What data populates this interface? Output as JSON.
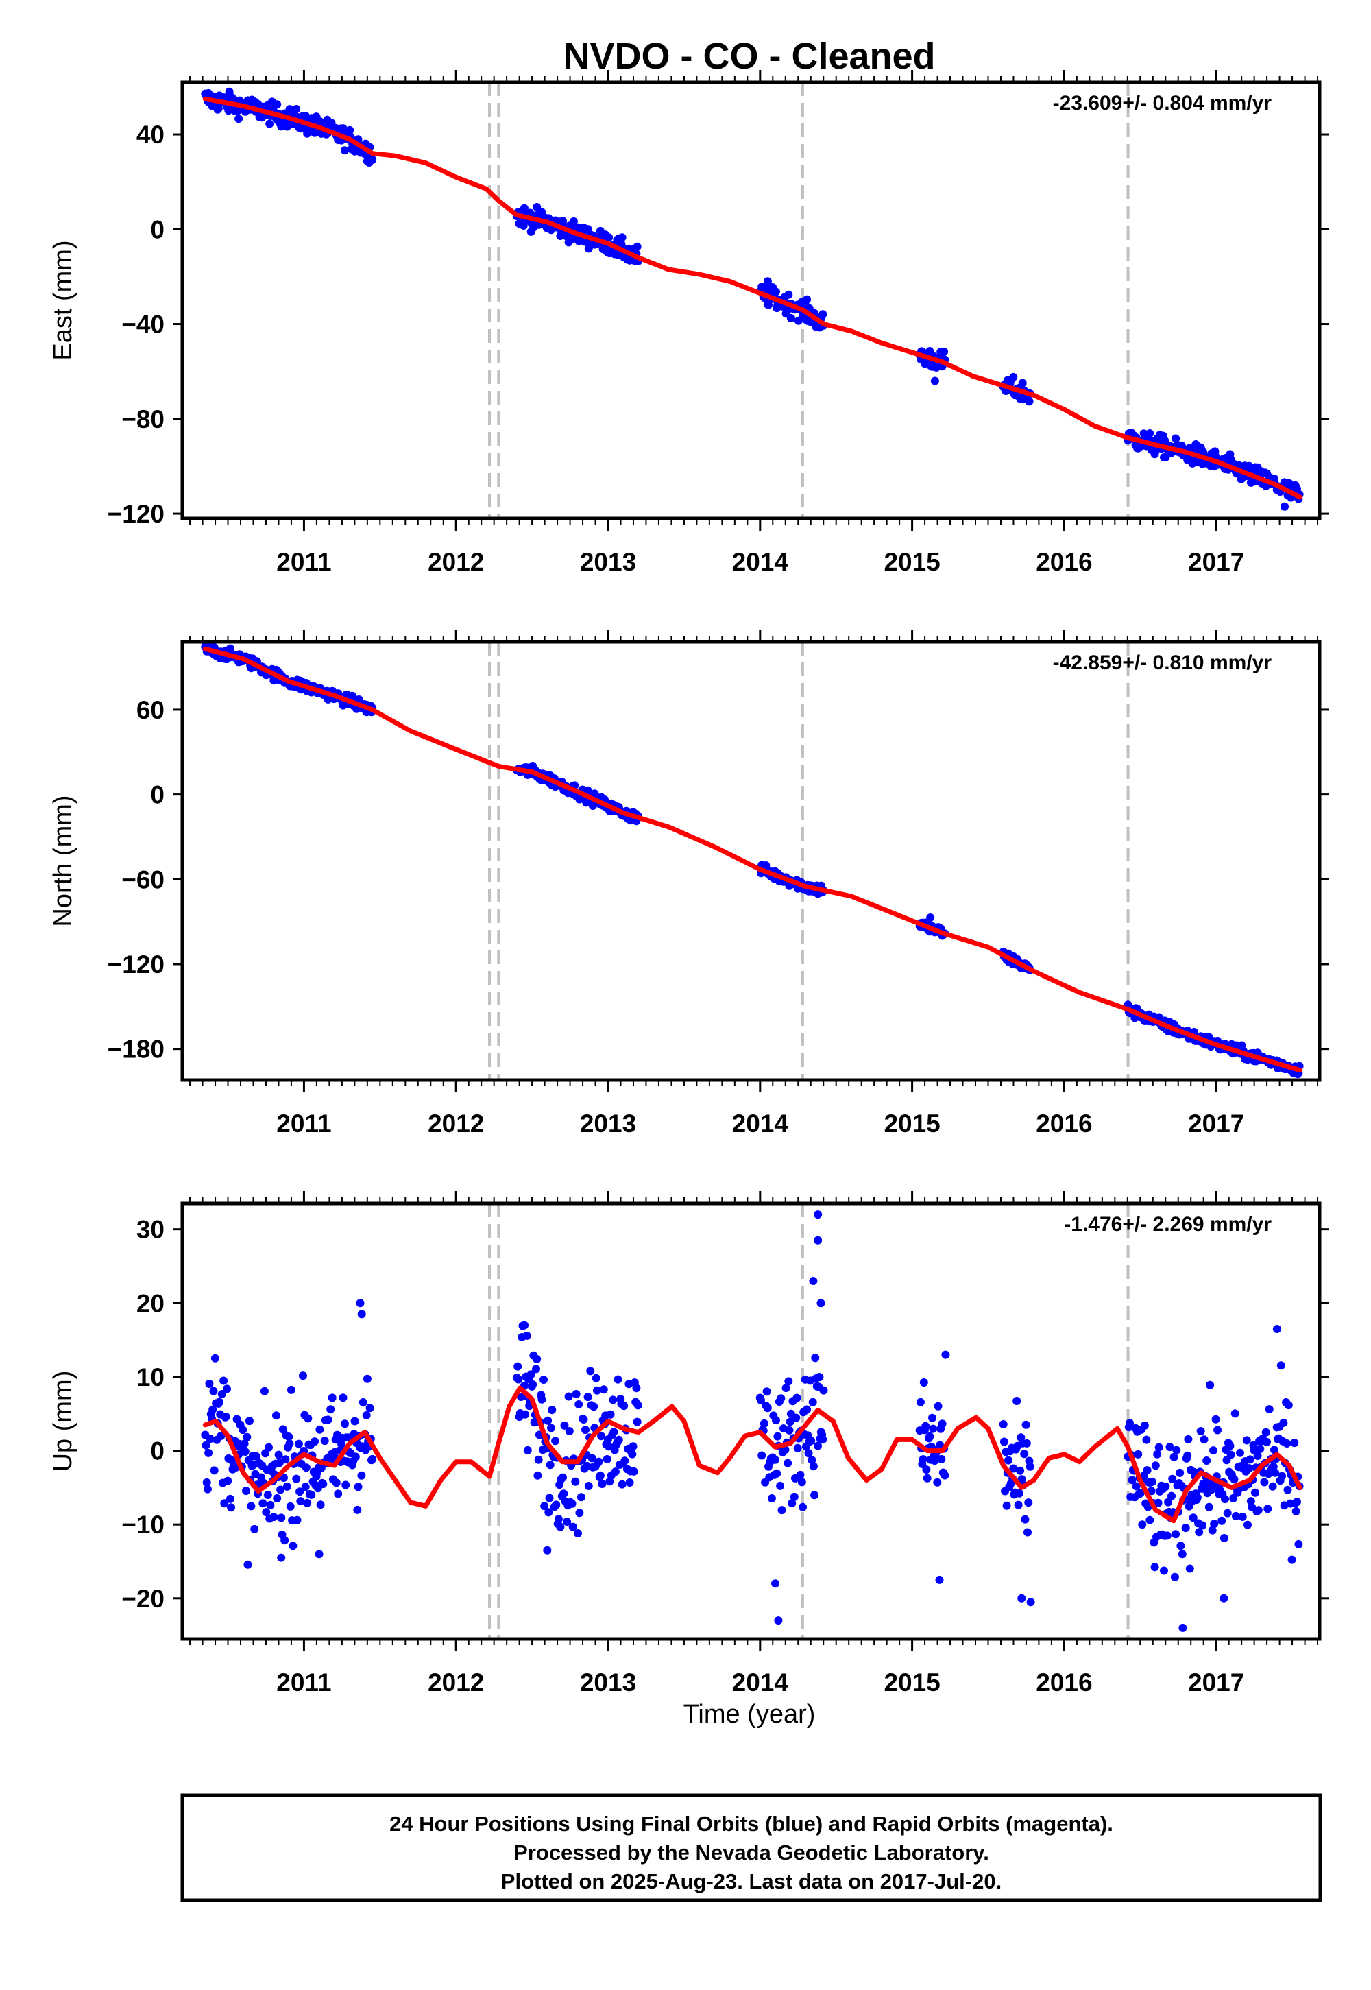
{
  "title": "NVDO  - CO - Cleaned",
  "xlabel": "Time (year)",
  "footer": {
    "line1": "24 Hour Positions Using Final Orbits (blue) and Rapid Orbits (magenta).",
    "line2": "Processed by the Nevada Geodetic Laboratory.",
    "line3": "Plotted on 2025-Aug-23. Last data on 2017-Jul-20."
  },
  "colors": {
    "data": "#0000ff",
    "model": "#ff0000",
    "steps": "#c0c0c0",
    "frame": "#000000"
  },
  "chart_data": [
    {
      "type": "scatter",
      "ylabel": "East (mm)",
      "rate_text": "-23.609+/- 0.804 mm/yr",
      "xlim": [
        2010.2,
        2017.68
      ],
      "ylim": [
        -122,
        62
      ],
      "yticks": [
        40,
        0,
        -40,
        -80,
        -120
      ],
      "ytick_labels": [
        "40",
        "0",
        "−40",
        "−80",
        "−120"
      ],
      "xticks": [
        2011,
        2012,
        2013,
        2014,
        2015,
        2016,
        2017
      ],
      "xtick_labels": [
        "2011",
        "2012",
        "2013",
        "2014",
        "2015",
        "2016",
        "2017"
      ],
      "step_lines": [
        2012.22,
        2012.28,
        2014.28,
        2016.42
      ],
      "data_segments": [
        [
          2010.35,
          2011.45
        ],
        [
          2012.4,
          2013.2
        ],
        [
          2014.0,
          2014.42
        ],
        [
          2015.05,
          2015.22
        ],
        [
          2015.6,
          2015.78
        ],
        [
          2016.42,
          2017.55
        ]
      ],
      "series": [
        {
          "name": "Final Orbits",
          "kind": "points",
          "scatter": 2.2,
          "outliers": [
            [
              2014.05,
              -22
            ],
            [
              2015.15,
              -64
            ],
            [
              2017.45,
              -117
            ]
          ]
        },
        {
          "kind": "line",
          "x": [
            2010.35,
            2010.6,
            2010.9,
            2011.1,
            2011.3,
            2011.45,
            2011.6,
            2011.8,
            2012.0,
            2012.2,
            2012.28,
            2012.4,
            2012.6,
            2012.8,
            2013.0,
            2013.2,
            2013.4,
            2013.6,
            2013.8,
            2014.0,
            2014.28,
            2014.42,
            2014.6,
            2014.8,
            2015.0,
            2015.2,
            2015.4,
            2015.6,
            2015.8,
            2016.0,
            2016.2,
            2016.42,
            2016.6,
            2016.8,
            2017.0,
            2017.2,
            2017.4,
            2017.55
          ],
          "y": [
            55,
            52,
            47,
            43,
            38,
            32,
            31,
            28,
            22,
            17,
            12,
            6,
            3,
            -2,
            -6,
            -12,
            -17,
            -19,
            -22,
            -27,
            -34,
            -40,
            -43,
            -48,
            -52,
            -56,
            -62,
            -66,
            -70,
            -76,
            -83,
            -88,
            -91,
            -94,
            -98,
            -103,
            -108,
            -113
          ]
        }
      ]
    },
    {
      "type": "scatter",
      "ylabel": "North (mm)",
      "rate_text": "-42.859+/- 0.810 mm/yr",
      "xlim": [
        2010.2,
        2017.68
      ],
      "ylim": [
        -202,
        108
      ],
      "yticks": [
        60,
        0,
        -60,
        -120,
        -180
      ],
      "ytick_labels": [
        "60",
        "0",
        "−60",
        "−120",
        "−180"
      ],
      "xticks": [
        2011,
        2012,
        2013,
        2014,
        2015,
        2016,
        2017
      ],
      "xtick_labels": [
        "2011",
        "2012",
        "2013",
        "2014",
        "2015",
        "2016",
        "2017"
      ],
      "step_lines": [
        2012.22,
        2012.28,
        2014.28,
        2016.42
      ],
      "data_segments": [
        [
          2010.35,
          2011.45
        ],
        [
          2012.4,
          2013.2
        ],
        [
          2014.0,
          2014.42
        ],
        [
          2015.05,
          2015.22
        ],
        [
          2015.6,
          2015.78
        ],
        [
          2016.42,
          2017.55
        ]
      ],
      "series": [
        {
          "name": "Final Orbits",
          "kind": "points",
          "scatter": 2.0,
          "outliers": [
            [
              2015.12,
              -87
            ]
          ]
        },
        {
          "kind": "line",
          "x": [
            2010.35,
            2010.6,
            2010.9,
            2011.2,
            2011.45,
            2011.7,
            2012.0,
            2012.28,
            2012.5,
            2012.8,
            2013.1,
            2013.4,
            2013.7,
            2014.0,
            2014.3,
            2014.6,
            2014.9,
            2015.2,
            2015.5,
            2015.8,
            2016.1,
            2016.42,
            2016.7,
            2017.0,
            2017.3,
            2017.55
          ],
          "y": [
            103,
            96,
            80,
            70,
            60,
            45,
            32,
            20,
            16,
            2,
            -13,
            -23,
            -37,
            -53,
            -65,
            -72,
            -85,
            -98,
            -108,
            -125,
            -140,
            -152,
            -165,
            -177,
            -187,
            -195
          ]
        }
      ]
    },
    {
      "type": "scatter",
      "ylabel": "Up (mm)",
      "rate_text": "-1.476+/- 2.269 mm/yr",
      "xlim": [
        2010.2,
        2017.68
      ],
      "ylim": [
        -25.5,
        33.5
      ],
      "yticks": [
        30,
        20,
        10,
        0,
        -10,
        -20
      ],
      "ytick_labels": [
        "30",
        "20",
        "10",
        "0",
        "−10",
        "−20"
      ],
      "xticks": [
        2011,
        2012,
        2013,
        2014,
        2015,
        2016,
        2017
      ],
      "xtick_labels": [
        "2011",
        "2012",
        "2013",
        "2014",
        "2015",
        "2016",
        "2017"
      ],
      "step_lines": [
        2012.22,
        2012.28,
        2014.28,
        2016.42
      ],
      "data_segments": [
        [
          2010.35,
          2011.45
        ],
        [
          2012.4,
          2013.2
        ],
        [
          2014.0,
          2014.42
        ],
        [
          2015.05,
          2015.22
        ],
        [
          2015.6,
          2015.78
        ],
        [
          2016.42,
          2017.55
        ]
      ],
      "series": [
        {
          "name": "Final Orbits",
          "kind": "points",
          "scatter": 4.5,
          "outliers": [
            [
              2014.38,
              32
            ],
            [
              2014.38,
              28.5
            ],
            [
              2014.35,
              23
            ],
            [
              2014.4,
              20
            ],
            [
              2011.37,
              20
            ],
            [
              2011.38,
              18.5
            ],
            [
              2014.12,
              -23
            ],
            [
              2014.1,
              -18
            ],
            [
              2016.78,
              -24
            ],
            [
              2017.05,
              -20
            ],
            [
              2015.72,
              -20
            ],
            [
              2015.78,
              -20.5
            ],
            [
              2012.6,
              -13.5
            ],
            [
              2010.85,
              -14.5
            ],
            [
              2011.1,
              -14
            ],
            [
              2017.4,
              16.5
            ],
            [
              2012.45,
              17
            ],
            [
              2015.22,
              13
            ],
            [
              2015.18,
              -17.5
            ]
          ]
        },
        {
          "kind": "line",
          "x": [
            2010.35,
            2010.42,
            2010.5,
            2010.6,
            2010.7,
            2010.8,
            2010.9,
            2011.0,
            2011.1,
            2011.2,
            2011.3,
            2011.4,
            2011.5,
            2011.6,
            2011.7,
            2011.8,
            2011.9,
            2012.0,
            2012.1,
            2012.22,
            2012.28,
            2012.35,
            2012.42,
            2012.5,
            2012.6,
            2012.7,
            2012.8,
            2012.9,
            2013.0,
            2013.1,
            2013.2,
            2013.3,
            2013.42,
            2013.5,
            2013.6,
            2013.72,
            2013.8,
            2013.9,
            2014.0,
            2014.1,
            2014.2,
            2014.28,
            2014.38,
            2014.48,
            2014.58,
            2014.7,
            2014.8,
            2014.9,
            2015.0,
            2015.1,
            2015.2,
            2015.3,
            2015.42,
            2015.5,
            2015.6,
            2015.72,
            2015.8,
            2015.9,
            2016.0,
            2016.1,
            2016.2,
            2016.35,
            2016.42,
            2016.5,
            2016.6,
            2016.72,
            2016.8,
            2016.9,
            2017.0,
            2017.1,
            2017.22,
            2017.3,
            2017.4,
            2017.48,
            2017.55
          ],
          "y": [
            3.5,
            4,
            2,
            -3,
            -5.5,
            -4,
            -2,
            -0.5,
            -1.5,
            -2,
            1,
            2.5,
            -1,
            -4,
            -7,
            -7.5,
            -4,
            -1.5,
            -1.5,
            -3.5,
            1,
            6,
            8.5,
            7,
            1,
            -1.5,
            -1.5,
            2,
            4,
            3,
            2.5,
            4,
            6,
            4,
            -2,
            -3,
            -1,
            2,
            2.5,
            0.5,
            1,
            3,
            5.5,
            4,
            -1,
            -4,
            -2.5,
            1.5,
            1.5,
            0,
            0,
            3,
            4.5,
            3,
            -2,
            -5,
            -4,
            -1,
            -0.5,
            -1.5,
            0.5,
            3,
            0.5,
            -4,
            -8,
            -9.5,
            -5.5,
            -3,
            -4,
            -5,
            -4,
            -2,
            -0.5,
            -2,
            -5
          ]
        }
      ]
    }
  ]
}
